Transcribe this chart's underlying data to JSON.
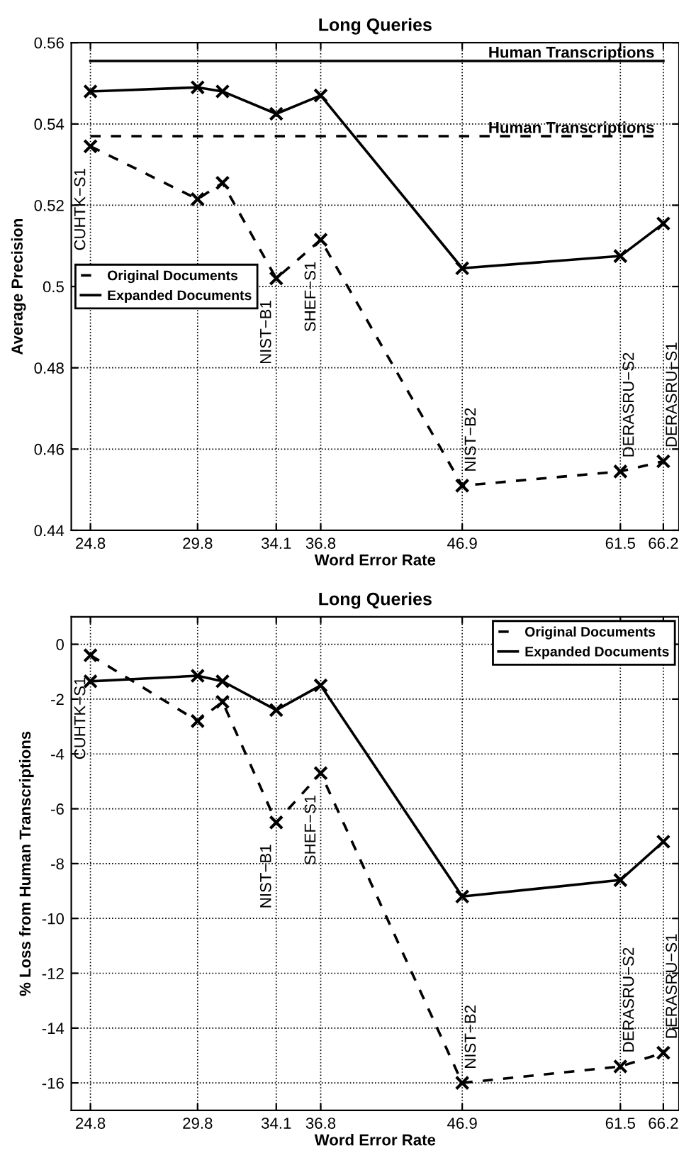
{
  "chart_data": [
    {
      "type": "line",
      "title": "Long Queries",
      "xlabel": "Word Error Rate",
      "ylabel": "Average Precision",
      "log": "x",
      "x": [
        24.8,
        29.8,
        31.1,
        34.1,
        36.8,
        46.9,
        61.5,
        66.2
      ],
      "series": [
        {
          "name": "Original Documents",
          "color": "#000000",
          "line_style": "dashed",
          "values": [
            0.5345,
            0.5215,
            0.5255,
            0.502,
            0.5115,
            0.451,
            0.4545,
            0.457
          ]
        },
        {
          "name": "Expanded Documents",
          "color": "#000000",
          "line_style": "solid",
          "values": [
            0.548,
            0.549,
            0.548,
            0.5425,
            0.547,
            0.5045,
            0.5075,
            0.5155
          ]
        }
      ],
      "marker": "cross",
      "xlim": [
        24,
        68
      ],
      "xticks": [
        24.8,
        29.8,
        34.1,
        36.8,
        46.9,
        61.5,
        66.2
      ],
      "ylim": [
        0.44,
        0.56
      ],
      "yticks": [
        0.44,
        0.46,
        0.48,
        0.5,
        0.52,
        0.54,
        0.56
      ],
      "grid": true,
      "legend": "center left",
      "ref_lines": [
        {
          "axis": "y",
          "value": 0.5555,
          "label": "Human Transcriptions",
          "color": "#000000",
          "line_style": "solid"
        },
        {
          "axis": "y",
          "value": 0.537,
          "label": "Human Transcriptions",
          "color": "#000000",
          "line_style": "dashed"
        }
      ],
      "annotations": [
        {
          "text": "CUHTK−S1",
          "x": 24.8,
          "y": 0.5345
        },
        {
          "text": "NIST−B1",
          "x": 34.1,
          "y": 0.502
        },
        {
          "text": "SHEF−S1",
          "x": 36.8,
          "y": 0.5115
        },
        {
          "text": "NIST−B2",
          "x": 46.9,
          "y": 0.451
        },
        {
          "text": "DERASRU−S2",
          "x": 61.5,
          "y": 0.4545
        },
        {
          "text": "DERASRU−S1",
          "x": 66.2,
          "y": 0.457
        }
      ]
    },
    {
      "type": "line",
      "title": "Long Queries",
      "xlabel": "Word Error Rate",
      "ylabel": "% Loss from Human Transcriptions",
      "log": "x",
      "x": [
        24.8,
        29.8,
        31.1,
        34.1,
        36.8,
        46.9,
        61.5,
        66.2
      ],
      "series": [
        {
          "name": "Original Documents",
          "color": "#000000",
          "line_style": "dashed",
          "values": [
            -0.4,
            -2.8,
            -2.1,
            -6.5,
            -4.7,
            -16.0,
            -15.4,
            -14.9
          ]
        },
        {
          "name": "Expanded Documents",
          "color": "#000000",
          "line_style": "solid",
          "values": [
            -1.35,
            -1.15,
            -1.35,
            -2.4,
            -1.5,
            -9.2,
            -8.6,
            -7.2
          ]
        }
      ],
      "marker": "cross",
      "xlim": [
        24,
        68
      ],
      "xticks": [
        24.8,
        29.8,
        34.1,
        36.8,
        46.9,
        61.5,
        66.2
      ],
      "ylim": [
        -17,
        1
      ],
      "yticks": [
        -16,
        -14,
        -12,
        -10,
        -8,
        -6,
        -4,
        -2,
        0
      ],
      "grid": true,
      "legend": "upper right",
      "annotations": [
        {
          "text": "CUHTK−S1",
          "x": 24.8,
          "y": -0.4
        },
        {
          "text": "NIST−B1",
          "x": 34.1,
          "y": -6.5
        },
        {
          "text": "SHEF−S1",
          "x": 36.8,
          "y": -4.7
        },
        {
          "text": "NIST−B2",
          "x": 46.9,
          "y": -16.0
        },
        {
          "text": "DERASRU−S2",
          "x": 61.5,
          "y": -15.4
        },
        {
          "text": "DERASRU−S1",
          "x": 66.2,
          "y": -14.9
        }
      ]
    }
  ]
}
